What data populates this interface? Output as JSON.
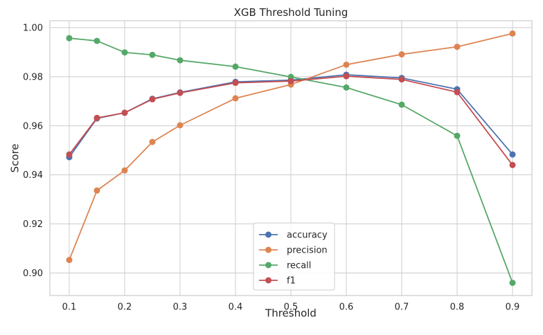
{
  "chart_data": {
    "type": "line",
    "title": "XGB Threshold Tuning",
    "xlabel": "Threshold",
    "ylabel": "Score",
    "x": [
      0.1,
      0.15,
      0.2,
      0.25,
      0.3,
      0.4,
      0.5,
      0.6,
      0.7,
      0.8,
      0.9
    ],
    "x_ticks": [
      "0.1",
      "0.2",
      "0.3",
      "0.4",
      "0.5",
      "0.6",
      "0.7",
      "0.8",
      "0.9"
    ],
    "y_ticks": [
      "0.90",
      "0.92",
      "0.94",
      "0.96",
      "0.98",
      "1.00"
    ],
    "xlim": [
      0.065,
      0.935
    ],
    "ylim": [
      0.8908,
      1.0028
    ],
    "grid": true,
    "legend_position": "lower-center",
    "series": [
      {
        "name": "accuracy",
        "color": "#4c72b0",
        "values": [
          0.9472,
          0.963,
          0.9653,
          0.971,
          0.9736,
          0.9779,
          0.9786,
          0.9808,
          0.9795,
          0.9749,
          0.9483
        ]
      },
      {
        "name": "precision",
        "color": "#dd8452",
        "values": [
          0.9053,
          0.9336,
          0.9418,
          0.9534,
          0.9602,
          0.9712,
          0.9768,
          0.9849,
          0.9891,
          0.9922,
          0.9976
        ]
      },
      {
        "name": "recall",
        "color": "#55a868",
        "values": [
          0.9957,
          0.9946,
          0.9899,
          0.9889,
          0.9867,
          0.9841,
          0.9799,
          0.9756,
          0.9686,
          0.9559,
          0.896
        ]
      },
      {
        "name": "f1",
        "color": "#c44e52",
        "values": [
          0.9483,
          0.9632,
          0.9653,
          0.9708,
          0.9734,
          0.9775,
          0.9782,
          0.9802,
          0.9789,
          0.9737,
          0.944
        ]
      }
    ]
  }
}
